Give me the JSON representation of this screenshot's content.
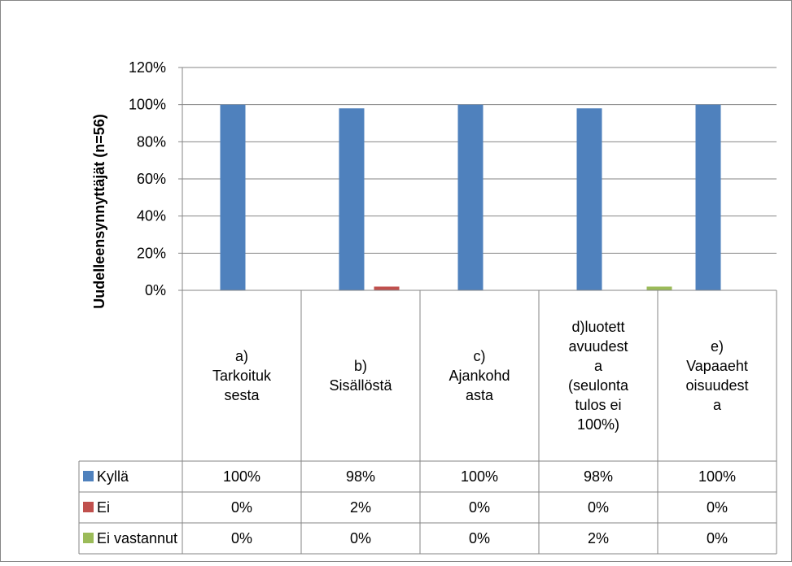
{
  "chart_data": {
    "type": "bar",
    "title": "",
    "xlabel": "",
    "ylabel": "Uudelleensynnyttäjät (n=56)",
    "ylim": [
      0,
      120
    ],
    "y_ticks": [
      "0%",
      "20%",
      "40%",
      "60%",
      "80%",
      "100%",
      "120%"
    ],
    "grid": true,
    "legend": "data-table",
    "categories": [
      [
        "a)",
        "Tarkoituk",
        "sesta"
      ],
      [
        "b)",
        "Sisällöstä"
      ],
      [
        "c)",
        "Ajankohd",
        "asta"
      ],
      [
        "d)luotett",
        "avuudest",
        "a",
        "(seulonta",
        "tulos ei",
        "100%)"
      ],
      [
        "e)",
        "Vapaaeht",
        "oisuudest",
        "a"
      ]
    ],
    "series": [
      {
        "name": "Kyllä",
        "color": "#4f81bd",
        "values": [
          100,
          98,
          100,
          98,
          100
        ],
        "labels": [
          "100%",
          "98%",
          "100%",
          "98%",
          "100%"
        ]
      },
      {
        "name": "Ei",
        "color": "#c0504d",
        "values": [
          0,
          2,
          0,
          0,
          0
        ],
        "labels": [
          "0%",
          "2%",
          "0%",
          "0%",
          "0%"
        ]
      },
      {
        "name": "Ei vastannut",
        "color": "#9bbb59",
        "values": [
          0,
          0,
          0,
          2,
          0
        ],
        "labels": [
          "0%",
          "0%",
          "0%",
          "2%",
          "0%"
        ]
      }
    ]
  }
}
